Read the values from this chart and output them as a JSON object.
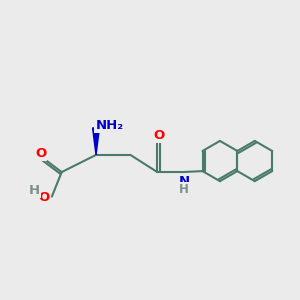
{
  "bg_color": "#ebebeb",
  "bond_color": "#4a7a6a",
  "bond_width": 1.5,
  "atom_colors": {
    "O": "#ff0000",
    "N": "#0000cc",
    "C": "#000000",
    "H": "#7a9090"
  },
  "font_size_atom": 9.5,
  "wedge_color": "#0000cc"
}
